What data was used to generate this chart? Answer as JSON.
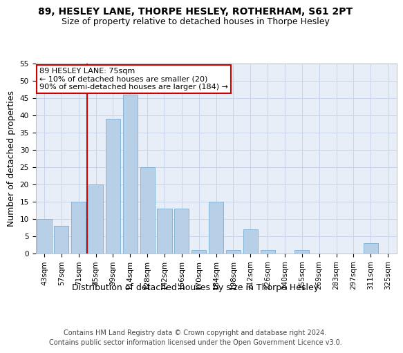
{
  "title": "89, HESLEY LANE, THORPE HESLEY, ROTHERHAM, S61 2PT",
  "subtitle": "Size of property relative to detached houses in Thorpe Hesley",
  "xlabel": "Distribution of detached houses by size in Thorpe Hesley",
  "ylabel": "Number of detached properties",
  "categories": [
    "43sqm",
    "57sqm",
    "71sqm",
    "85sqm",
    "99sqm",
    "114sqm",
    "128sqm",
    "142sqm",
    "156sqm",
    "170sqm",
    "184sqm",
    "198sqm",
    "212sqm",
    "226sqm",
    "240sqm",
    "255sqm",
    "269sqm",
    "283sqm",
    "297sqm",
    "311sqm",
    "325sqm"
  ],
  "values": [
    10,
    8,
    15,
    20,
    39,
    46,
    25,
    13,
    13,
    1,
    15,
    1,
    7,
    1,
    0,
    1,
    0,
    0,
    0,
    3,
    0
  ],
  "bar_color": "#b8cfe8",
  "bar_edgecolor": "#7aafd4",
  "grid_color": "#c8d4e8",
  "background_color": "#e8eef8",
  "vline_x_index": 2,
  "vline_color": "#cc0000",
  "annotation_text": "89 HESLEY LANE: 75sqm\n← 10% of detached houses are smaller (20)\n90% of semi-detached houses are larger (184) →",
  "annotation_box_edgecolor": "#cc0000",
  "annotation_box_facecolor": "#ffffff",
  "ylim": [
    0,
    55
  ],
  "yticks": [
    0,
    5,
    10,
    15,
    20,
    25,
    30,
    35,
    40,
    45,
    50,
    55
  ],
  "footer_line1": "Contains HM Land Registry data © Crown copyright and database right 2024.",
  "footer_line2": "Contains public sector information licensed under the Open Government Licence v3.0.",
  "title_fontsize": 10,
  "subtitle_fontsize": 9,
  "ylabel_fontsize": 9,
  "xlabel_fontsize": 9,
  "tick_fontsize": 7.5,
  "annotation_fontsize": 8,
  "footer_fontsize": 7
}
